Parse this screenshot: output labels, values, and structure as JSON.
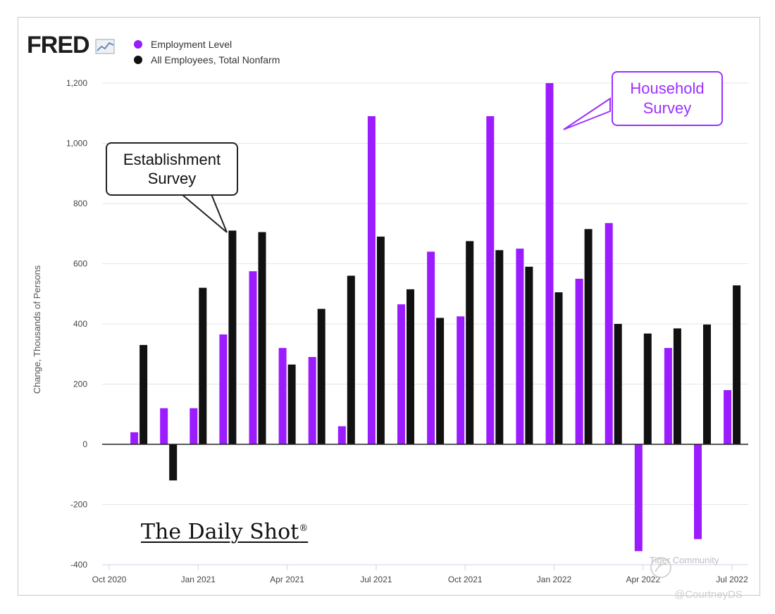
{
  "logo": {
    "text": "FRED"
  },
  "legend": [
    {
      "label": "Employment Level",
      "color": "#9b1cff"
    },
    {
      "label": "All Employees, Total Nonfarm",
      "color": "#111111"
    }
  ],
  "callouts": {
    "establishment": [
      "Establishment",
      "Survey"
    ],
    "household": [
      "Household",
      "Survey"
    ]
  },
  "branding": {
    "daily_shot": "The Daily Shot",
    "reg_mark": "®"
  },
  "watermark": {
    "community": "Tiger Community",
    "handle": "@CourtneyDS"
  },
  "chart_data": {
    "type": "bar",
    "ylabel": "Change, Thousands of Persons",
    "ylim": [
      -400,
      1200
    ],
    "yticks": [
      -400,
      -200,
      0,
      200,
      400,
      600,
      800,
      1000,
      1200
    ],
    "ytick_labels": [
      "-400",
      "-200",
      "0",
      "200",
      "400",
      "600",
      "800",
      "1,000",
      "1,200"
    ],
    "xtick_labels": [
      "Oct 2020",
      "Jan 2021",
      "Apr 2021",
      "Jul 2021",
      "Oct 2021",
      "Jan 2022",
      "Apr 2022",
      "Jul 2022"
    ],
    "categories": [
      "Nov 2020",
      "Dec 2020",
      "Jan 2021",
      "Feb 2021",
      "Mar 2021",
      "Apr 2021",
      "May 2021",
      "Jun 2021",
      "Jul 2021",
      "Aug 2021",
      "Sep 2021",
      "Oct 2021",
      "Nov 2021",
      "Dec 2021",
      "Jan 2022",
      "Feb 2022",
      "Mar 2022",
      "Apr 2022",
      "May 2022",
      "Jun 2022",
      "Jul 2022"
    ],
    "series": [
      {
        "name": "Employment Level",
        "color": "#9b1cff",
        "values": [
          40,
          120,
          120,
          365,
          575,
          320,
          290,
          60,
          1090,
          465,
          640,
          425,
          1090,
          650,
          1200,
          550,
          735,
          -355,
          320,
          -315,
          180
        ]
      },
      {
        "name": "All Employees, Total Nonfarm",
        "color": "#111111",
        "values": [
          330,
          -120,
          520,
          710,
          705,
          265,
          450,
          560,
          690,
          515,
          420,
          675,
          645,
          590,
          505,
          715,
          400,
          368,
          385,
          398,
          528
        ]
      }
    ]
  }
}
